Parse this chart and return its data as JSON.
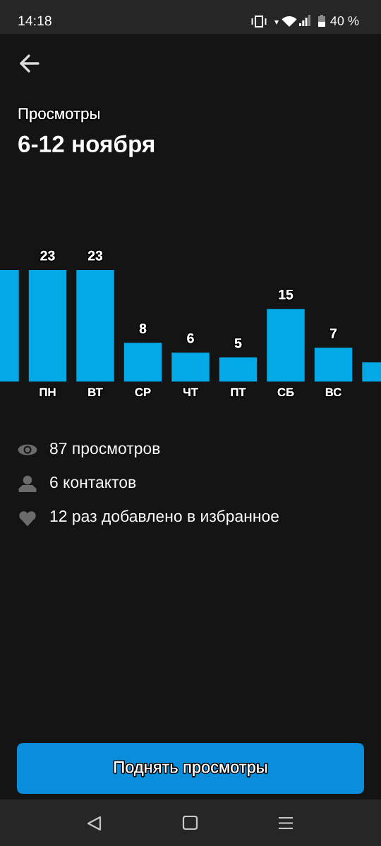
{
  "chart_data": {
    "type": "bar",
    "title": "Просмотры",
    "subtitle": "6-12 ноября",
    "categories": [
      null,
      "ПН",
      "ВТ",
      "СР",
      "ЧТ",
      "ПТ",
      "СБ",
      "ВС",
      null
    ],
    "values": [
      23,
      23,
      23,
      8,
      6,
      5,
      15,
      7,
      4
    ],
    "value_labels": [
      null,
      "23",
      "23",
      "8",
      "6",
      "5",
      "15",
      "7",
      null
    ],
    "color": "#03a9e6",
    "annotations": [
      "14:18",
      "40 %",
      "87 просмотров",
      "6 контактов",
      "12 раз добавлено в избранное",
      "Поднять просмотры"
    ]
  }
}
